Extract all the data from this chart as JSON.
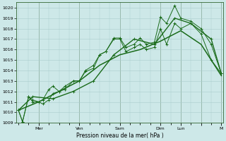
{
  "xlabel": "Pression niveau de la mer( hPa )",
  "bg_color": "#cde8e8",
  "grid_color": "#aacccc",
  "line_color": "#1a6b1a",
  "spine_color": "#336633",
  "ylim": [
    1009,
    1020.5
  ],
  "yticks": [
    1009,
    1010,
    1011,
    1012,
    1013,
    1014,
    1015,
    1016,
    1017,
    1018,
    1019,
    1020
  ],
  "day_labels": [
    "",
    "Mer",
    "",
    "Ven",
    "",
    "Sam",
    "",
    "Dim",
    "Lun",
    "",
    "M"
  ],
  "day_positions": [
    0,
    1,
    2,
    3,
    4,
    5,
    6,
    7,
    8,
    9,
    10
  ],
  "vline_positions": [
    1,
    3,
    5,
    7,
    8,
    9,
    10
  ],
  "s1_x": [
    0.0,
    0.2,
    0.5,
    0.7,
    1.0,
    1.2,
    1.5,
    1.7,
    2.0,
    2.3,
    2.7,
    3.0,
    3.3,
    3.7,
    4.0,
    4.3,
    4.7,
    5.0,
    5.3,
    5.7,
    6.0,
    6.3,
    6.7,
    7.0,
    7.3,
    7.7,
    8.0,
    8.5,
    9.0,
    9.5,
    10.0
  ],
  "s1_y": [
    1010.2,
    1009.1,
    1011.5,
    1011.2,
    1011.0,
    1010.8,
    1011.2,
    1011.8,
    1012.0,
    1012.2,
    1013.0,
    1013.0,
    1013.9,
    1014.2,
    1015.5,
    1015.8,
    1017.1,
    1017.1,
    1016.2,
    1016.5,
    1017.1,
    1016.5,
    1016.7,
    1019.1,
    1018.5,
    1020.2,
    1019.0,
    1018.7,
    1018.0,
    1016.5,
    1013.7
  ],
  "s2_x": [
    0.0,
    0.2,
    0.5,
    0.7,
    1.0,
    1.2,
    1.5,
    1.7,
    2.0,
    2.3,
    2.7,
    3.0,
    3.3,
    3.7,
    4.0,
    4.3,
    4.7,
    5.0,
    5.3,
    5.7,
    6.0,
    6.3,
    6.7,
    7.0,
    7.3,
    7.7,
    8.0,
    8.5,
    9.0,
    9.5,
    10.0
  ],
  "s2_y": [
    1010.2,
    1009.1,
    1011.5,
    1011.0,
    1011.0,
    1011.2,
    1012.2,
    1012.5,
    1012.0,
    1012.5,
    1013.0,
    1013.0,
    1014.0,
    1014.5,
    1015.5,
    1015.8,
    1017.0,
    1017.0,
    1015.8,
    1016.2,
    1016.5,
    1016.0,
    1016.2,
    1018.0,
    1016.5,
    1018.5,
    1018.0,
    1018.5,
    1017.5,
    1015.0,
    1013.7
  ],
  "s3_x": [
    0.0,
    0.7,
    1.7,
    2.7,
    3.7,
    4.7,
    5.7,
    6.7,
    7.7,
    8.5,
    9.5,
    10.0
  ],
  "s3_y": [
    1010.2,
    1011.5,
    1011.3,
    1012.0,
    1013.0,
    1015.5,
    1017.0,
    1016.5,
    1019.0,
    1018.5,
    1017.0,
    1013.7
  ],
  "s4_x": [
    0.0,
    1.0,
    2.0,
    3.0,
    4.0,
    5.0,
    6.0,
    7.0,
    8.0,
    9.0,
    10.0
  ],
  "s4_y": [
    1010.2,
    1011.0,
    1012.0,
    1013.0,
    1014.5,
    1015.5,
    1016.0,
    1016.8,
    1017.8,
    1016.5,
    1013.5
  ]
}
